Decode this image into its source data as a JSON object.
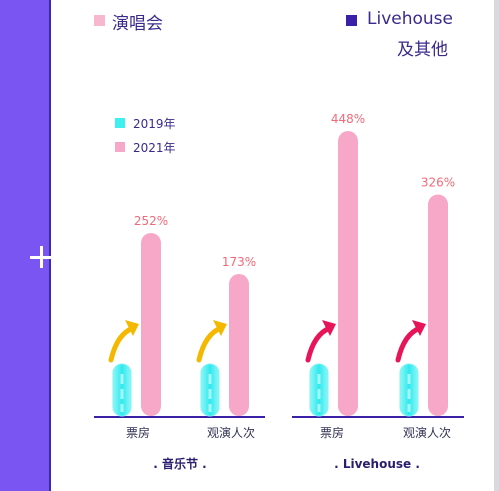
{
  "top_legend": {
    "items": [
      {
        "label": "演唱会",
        "color": "#f7b8cf"
      },
      {
        "label": "Livehouse",
        "label_line2": "及其他",
        "color": "#3a1fa8"
      }
    ]
  },
  "year_legend": {
    "items": [
      {
        "label": "2019年",
        "color": "#3ff0f0"
      },
      {
        "label": "2021年",
        "color": "#f7a8c8"
      }
    ]
  },
  "chart_data": {
    "type": "bar",
    "groups": [
      {
        "group_label": ". 音乐节 .",
        "categories": [
          "票房",
          "观演人次"
        ],
        "series": [
          {
            "name": "2019年",
            "values": [
              1.0,
              1.0
            ]
          },
          {
            "name": "2021年",
            "values": [
              3.52,
              2.73
            ]
          }
        ],
        "growth_labels": [
          "252%",
          "173%"
        ],
        "arrow_color": "#f5b800"
      },
      {
        "group_label": ". Livehouse .",
        "categories": [
          "票房",
          "观演人次"
        ],
        "series": [
          {
            "name": "2019年",
            "values": [
              1.0,
              1.0
            ]
          },
          {
            "name": "2021年",
            "values": [
              5.48,
              4.26
            ]
          }
        ],
        "growth_labels": [
          "448%",
          "326%"
        ],
        "arrow_color": "#e8145a"
      }
    ],
    "colors": {
      "2019": "#3ff0f0",
      "2021": "#f7a8c8",
      "label": "#f06a78",
      "axis": "#3a1fa8"
    }
  }
}
